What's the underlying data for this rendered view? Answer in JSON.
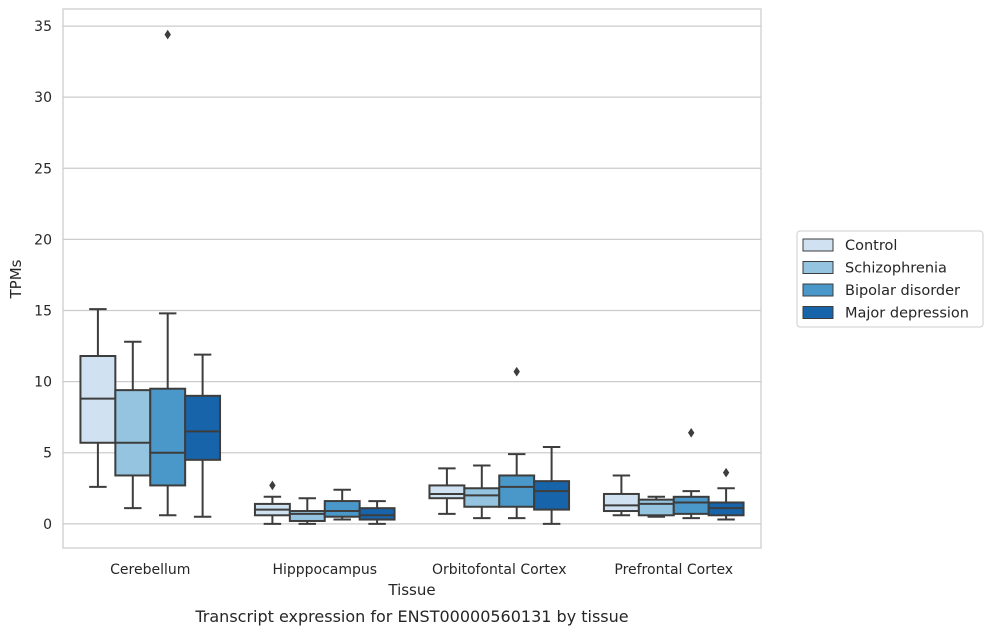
{
  "chart_data": {
    "type": "box",
    "xlabel": "Tissue",
    "ylabel": "TPMs",
    "caption": "Transcript expression for ENST00000560131 by tissue",
    "ylim": [
      -1.7,
      36.2
    ],
    "yticks": [
      0,
      5,
      10,
      15,
      20,
      25,
      30,
      35
    ],
    "grid": "horizontal",
    "legend_position": "right",
    "categories": [
      "Cerebellum",
      "Hipppocampus",
      "Orbitofontal Cortex",
      "Prefrontal Cortex"
    ],
    "series": [
      {
        "name": "Control",
        "color": "#d0e1f2",
        "boxes": [
          {
            "whislo": 2.6,
            "q1": 5.7,
            "med": 8.8,
            "q3": 11.8,
            "whishi": 15.1,
            "fliers": []
          },
          {
            "whislo": 0.0,
            "q1": 0.6,
            "med": 1.0,
            "q3": 1.4,
            "whishi": 1.9,
            "fliers": [
              2.7
            ]
          },
          {
            "whislo": 0.7,
            "q1": 1.8,
            "med": 2.1,
            "q3": 2.7,
            "whishi": 3.9,
            "fliers": []
          },
          {
            "whislo": 0.6,
            "q1": 0.9,
            "med": 1.3,
            "q3": 2.1,
            "whishi": 3.4,
            "fliers": []
          }
        ]
      },
      {
        "name": "Schizophrenia",
        "color": "#94c4df",
        "boxes": [
          {
            "whislo": 1.1,
            "q1": 3.4,
            "med": 5.7,
            "q3": 9.4,
            "whishi": 12.8,
            "fliers": []
          },
          {
            "whislo": 0.0,
            "q1": 0.2,
            "med": 0.7,
            "q3": 0.9,
            "whishi": 1.8,
            "fliers": []
          },
          {
            "whislo": 0.4,
            "q1": 1.2,
            "med": 2.0,
            "q3": 2.5,
            "whishi": 4.1,
            "fliers": []
          },
          {
            "whislo": 0.5,
            "q1": 0.6,
            "med": 1.4,
            "q3": 1.7,
            "whishi": 1.9,
            "fliers": []
          }
        ]
      },
      {
        "name": "Bipolar disorder",
        "color": "#4a98c9",
        "boxes": [
          {
            "whislo": 0.6,
            "q1": 2.7,
            "med": 5.0,
            "q3": 9.5,
            "whishi": 14.8,
            "fliers": [
              34.4
            ]
          },
          {
            "whislo": 0.3,
            "q1": 0.5,
            "med": 0.9,
            "q3": 1.6,
            "whishi": 2.4,
            "fliers": []
          },
          {
            "whislo": 0.4,
            "q1": 1.2,
            "med": 2.6,
            "q3": 3.4,
            "whishi": 4.9,
            "fliers": [
              10.7
            ]
          },
          {
            "whislo": 0.4,
            "q1": 0.7,
            "med": 1.5,
            "q3": 1.9,
            "whishi": 2.3,
            "fliers": [
              6.4
            ]
          }
        ]
      },
      {
        "name": "Major depression",
        "color": "#1764ab",
        "boxes": [
          {
            "whislo": 0.5,
            "q1": 4.5,
            "med": 6.5,
            "q3": 9.0,
            "whishi": 11.9,
            "fliers": []
          },
          {
            "whislo": 0.0,
            "q1": 0.3,
            "med": 0.6,
            "q3": 1.1,
            "whishi": 1.6,
            "fliers": []
          },
          {
            "whislo": 0.0,
            "q1": 1.0,
            "med": 2.3,
            "q3": 3.0,
            "whishi": 5.4,
            "fliers": []
          },
          {
            "whislo": 0.3,
            "q1": 0.6,
            "med": 1.1,
            "q3": 1.5,
            "whishi": 2.5,
            "fliers": [
              3.6
            ]
          }
        ]
      }
    ]
  }
}
